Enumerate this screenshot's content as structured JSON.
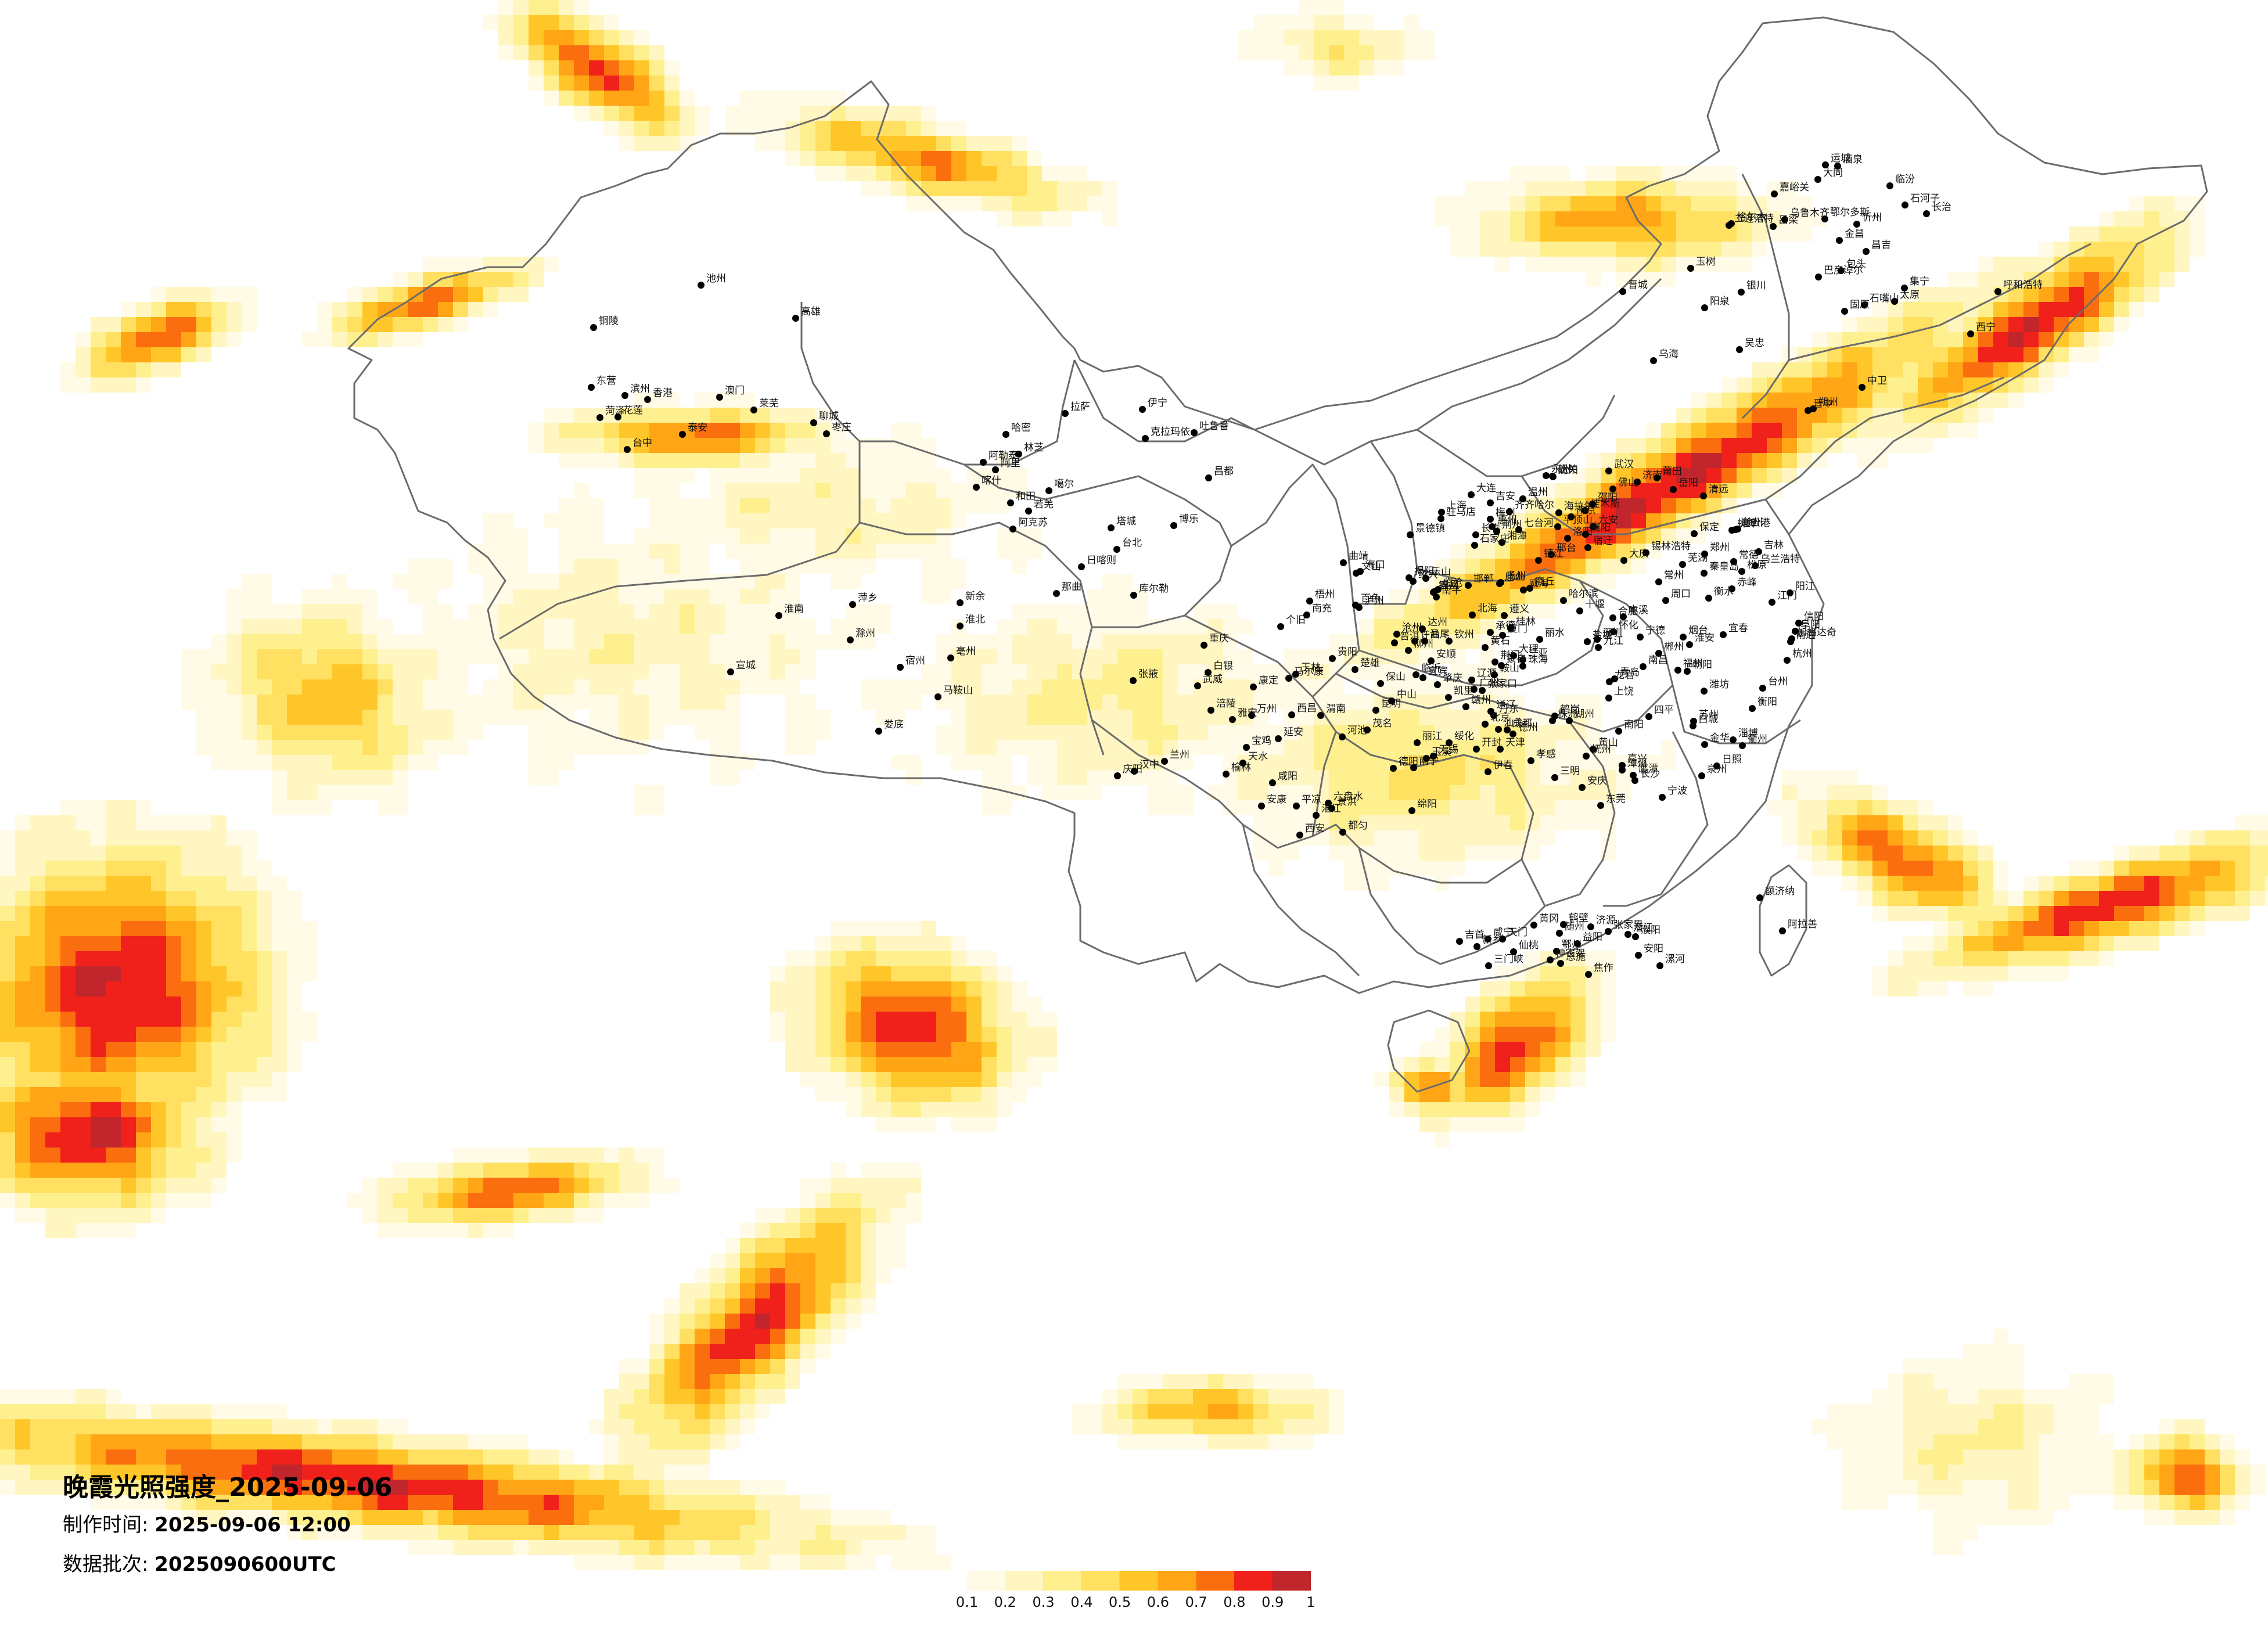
{
  "title": "晚霞光照强度_2025-09-06",
  "made_label": "制作时间:",
  "made_value": "2025-09-06 12:00",
  "batch_label": "数据批次:",
  "batch_value": "2025090600UTC",
  "legend": {
    "ticks": [
      "0.1",
      "0.2",
      "0.3",
      "0.4",
      "0.5",
      "0.6",
      "0.7",
      "0.8",
      "0.9",
      "1"
    ],
    "colors": [
      "#fffbe6",
      "#fff6c2",
      "#fff08f",
      "#ffe060",
      "#ffc62a",
      "#ffa516",
      "#fb6e10",
      "#f0201a",
      "#c0262c"
    ]
  },
  "cities": [
    "加格达奇",
    "鹤岗",
    "海拉尔",
    "伊春",
    "佳木斯",
    "齐齐哈尔",
    "大庆",
    "绥化",
    "哈尔滨",
    "七台河",
    "乌兰浩特",
    "白城",
    "松原",
    "长春",
    "吉林",
    "通辽",
    "锡林浩特",
    "四平",
    "辽源",
    "赤峰",
    "沈阳",
    "朝阳",
    "锦州",
    "鞍山",
    "本溪",
    "丹东",
    "大连",
    "承德",
    "张家口",
    "北京",
    "天津",
    "唐山",
    "秦皇岛",
    "保定",
    "石家庄",
    "沧州",
    "衡水",
    "邢台",
    "邯郸",
    "德州",
    "济南",
    "淄博",
    "潍坊",
    "青岛",
    "烟台",
    "威海",
    "临沂",
    "日照",
    "连云港",
    "徐州",
    "宿迁",
    "淮安",
    "盐城",
    "扬州",
    "南京",
    "镇江",
    "常州",
    "无锡",
    "苏州",
    "南通",
    "上海",
    "杭州",
    "宁波",
    "绍兴",
    "湖州",
    "嘉兴",
    "台州",
    "温州",
    "丽水",
    "衢州",
    "金华",
    "合肥",
    "蚌埠",
    "阜阳",
    "六安",
    "安庆",
    "芜湖",
    "黄山",
    "郑州",
    "开封",
    "洛阳",
    "平顶山",
    "南阳",
    "信阳",
    "驻马店",
    "周口",
    "商丘",
    "许昌",
    "武汉",
    "黄石",
    "荆门",
    "荆州",
    "宜昌",
    "襄阳",
    "十堰",
    "孝感",
    "长沙",
    "株洲",
    "湘潭",
    "衡阳",
    "岳阳",
    "常德",
    "怀化",
    "邵阳",
    "永州",
    "郴州",
    "南昌",
    "九江",
    "景德镇",
    "上饶",
    "鹰潭",
    "抚州",
    "宜春",
    "吉安",
    "赣州",
    "福州",
    "莆田",
    "泉州",
    "厦门",
    "漳州",
    "龙岩",
    "三明",
    "南平",
    "宁德",
    "广州",
    "深圳",
    "珠海",
    "东莞",
    "佛山",
    "中山",
    "江门",
    "惠州",
    "汕头",
    "汕尾",
    "揭阳",
    "梅州",
    "韶关",
    "清远",
    "肇庆",
    "阳江",
    "茂名",
    "湛江",
    "海口",
    "三亚",
    "南宁",
    "柳州",
    "桂林",
    "梧州",
    "玉林",
    "北海",
    "钦州",
    "百色",
    "河池",
    "贵阳",
    "遵义",
    "六盘水",
    "安顺",
    "都匀",
    "凯里",
    "昆明",
    "曲靖",
    "玉溪",
    "大理",
    "丽江",
    "保山",
    "临沧",
    "普洱",
    "景洪",
    "蒙自",
    "个旧",
    "文山",
    "楚雄",
    "成都",
    "绵阳",
    "德阳",
    "南充",
    "达州",
    "宜宾",
    "泸州",
    "乐山",
    "雅安",
    "西昌",
    "康定",
    "马尔康",
    "重庆",
    "万州",
    "涪陵",
    "西安",
    "宝鸡",
    "咸阳",
    "渭南",
    "延安",
    "榆林",
    "汉中",
    "安康",
    "兰州",
    "天水",
    "平凉",
    "庆阳",
    "白银",
    "武威",
    "张掖",
    "酒泉",
    "嘉峪关",
    "金昌",
    "西宁",
    "格尔木",
    "玉树",
    "银川",
    "石嘴山",
    "吴忠",
    "中卫",
    "固原",
    "呼和浩特",
    "包头",
    "鄂尔多斯",
    "乌海",
    "巴彦淖尔",
    "集宁",
    "二连浩特",
    "太原",
    "大同",
    "朔州",
    "忻州",
    "阳泉",
    "晋中",
    "长治",
    "晋城",
    "临汾",
    "运城",
    "吕梁",
    "乌鲁木齐",
    "昌吉",
    "石河子",
    "克拉玛依",
    "伊宁",
    "博乐",
    "塔城",
    "阿勒泰",
    "哈密",
    "吐鲁番",
    "库尔勒",
    "阿克苏",
    "喀什",
    "和田",
    "若羌",
    "拉萨",
    "日喀则",
    "林芝",
    "昌都",
    "那曲",
    "阿里",
    "噶尔",
    "台北",
    "台中",
    "高雄",
    "花莲",
    "香港",
    "澳门",
    "东营",
    "聊城",
    "菏泽",
    "枣庄",
    "泰安",
    "莱芜",
    "滨州",
    "铜陵",
    "池州",
    "宣城",
    "滁州",
    "淮南",
    "淮北",
    "亳州",
    "宿州",
    "马鞍山",
    "新余",
    "萍乡",
    "娄底",
    "益阳",
    "张家界",
    "吉首",
    "恩施",
    "随州",
    "咸宁",
    "鄂州",
    "黄冈",
    "潜江",
    "仙桃",
    "天门",
    "神农架",
    "濮阳",
    "安阳",
    "鹤壁",
    "新乡",
    "焦作",
    "三门峡",
    "漯河",
    "济源",
    "阿拉善",
    "额济纳"
  ]
}
